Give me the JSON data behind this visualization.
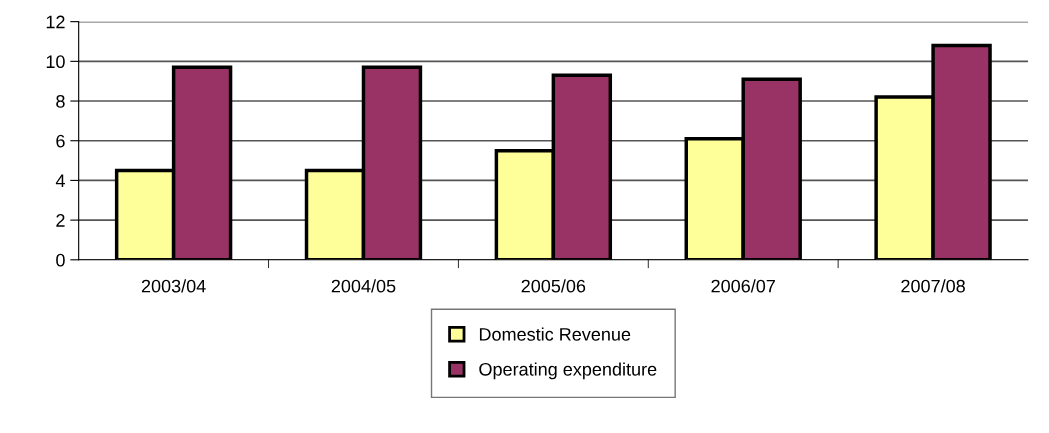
{
  "chart_data": {
    "type": "bar",
    "categories": [
      "2003/04",
      "2004/05",
      "2005/06",
      "2006/07",
      "2007/08"
    ],
    "series": [
      {
        "name": "Domestic Revenue",
        "color": "#ffff99",
        "values": [
          4.5,
          4.5,
          5.5,
          6.1,
          8.2
        ]
      },
      {
        "name": "Operating expenditure",
        "color": "#993366",
        "values": [
          9.7,
          9.7,
          9.3,
          9.1,
          10.8
        ]
      }
    ],
    "ylim": [
      0,
      12
    ],
    "yticks": [
      0,
      2,
      4,
      6,
      8,
      10,
      12
    ],
    "grid": "y",
    "legend": "bottom"
  }
}
